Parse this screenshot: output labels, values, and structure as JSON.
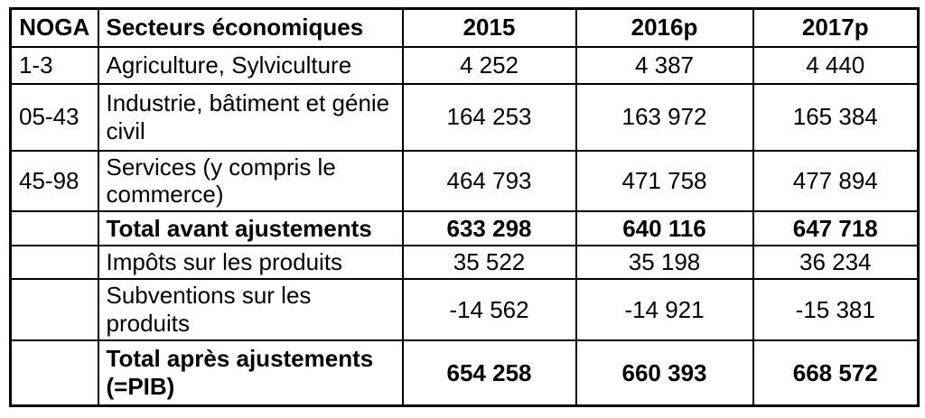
{
  "table": {
    "columns": [
      "NOGA",
      "Secteurs économiques",
      "2015",
      "2016p",
      "2017p"
    ],
    "rows": [
      [
        "1-3",
        "Agriculture, Sylviculture",
        "4 252",
        "4 387",
        "4 440"
      ],
      [
        "05-43",
        "Industrie, bâtiment et génie civil",
        "164 253",
        "163 972",
        "165 384"
      ],
      [
        "45-98",
        "Services (y compris le commerce)",
        "464 793",
        "471 758",
        "477 894"
      ],
      [
        "",
        "Total avant ajustements",
        "633 298",
        "640 116",
        "647 718"
      ],
      [
        "",
        "Impôts sur les produits",
        "35 522",
        "35 198",
        "36 234"
      ],
      [
        "",
        "Subventions sur les produits",
        "-14 562",
        "-14 921",
        "-15 381"
      ],
      [
        "",
        "Total après ajustements (=PIB)",
        "654 258",
        "660 393",
        "668 572"
      ]
    ],
    "bold_rows": [
      3,
      6
    ],
    "colors": {
      "border": "#000000",
      "text": "#000000",
      "background": "#ffffff"
    }
  }
}
